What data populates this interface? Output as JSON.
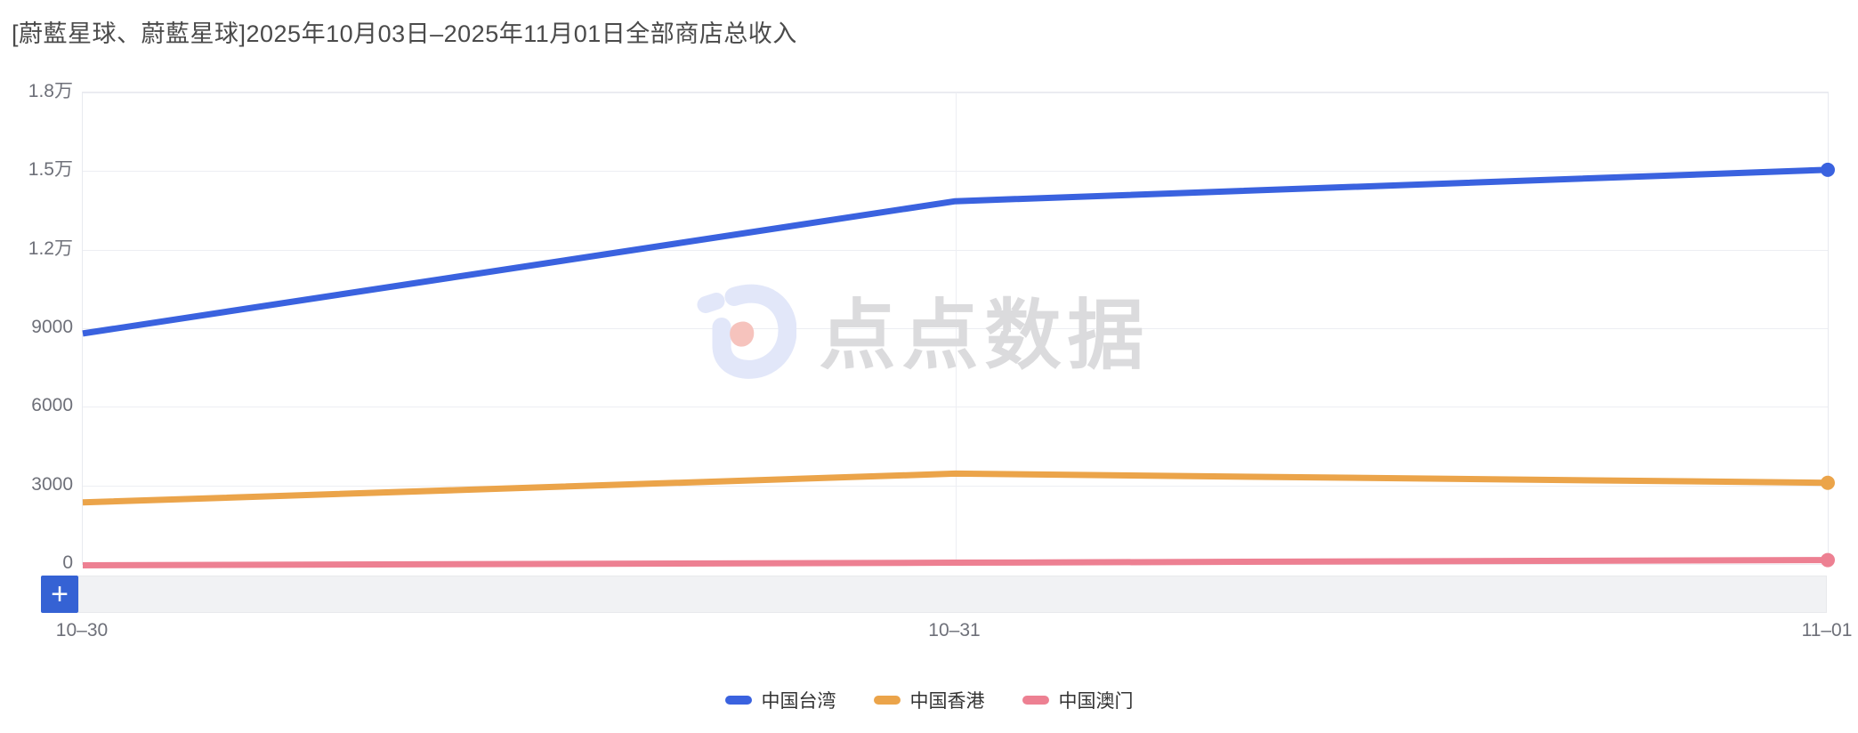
{
  "title": "[蔚藍星球、蔚藍星球]2025年10月03日–2025年11月01日全部商店总收入",
  "toolbar": {
    "add_icon": "+"
  },
  "watermark": {
    "brand": "点点数据"
  },
  "colors": {
    "taiwan_blue": "#3A62DF",
    "hongkong_orange": "#EBA44A",
    "macau_pink": "#ED8092",
    "add_button_blue": "#3562D4",
    "axis_text": "#6E7079",
    "title_text": "#4A4A4A",
    "legend_text": "#333333",
    "gridline": "#EDEEF3",
    "plot_border": "#E8EAEF",
    "zoom_strip_bg": "#F1F2F4",
    "watermark_text": "#DBDBDD",
    "watermark_logo": "#E2E7F9",
    "watermark_logo_accent": "#F6C3BD"
  },
  "chart_data": {
    "type": "line",
    "title": "[蔚藍星球、蔚藍星球]2025年10月03日–2025年11月01日全部商店总收入",
    "x": [
      "10–30",
      "10–31",
      "11–01"
    ],
    "y_ticks": [
      "1.8万",
      "1.5万",
      "1.2万",
      "9000",
      "6000",
      "3000",
      "0"
    ],
    "ylim": [
      0,
      18000
    ],
    "grid": true,
    "legend_position": "bottom",
    "end_markers": true,
    "series": [
      {
        "name": "中国台湾",
        "color": "#3A62DF",
        "values": [
          8800,
          13850,
          15050
        ]
      },
      {
        "name": "中国香港",
        "color": "#EBA44A",
        "values": [
          2350,
          3450,
          3100
        ]
      },
      {
        "name": "中国澳门",
        "color": "#ED8092",
        "values": [
          -50,
          50,
          150
        ]
      }
    ]
  }
}
